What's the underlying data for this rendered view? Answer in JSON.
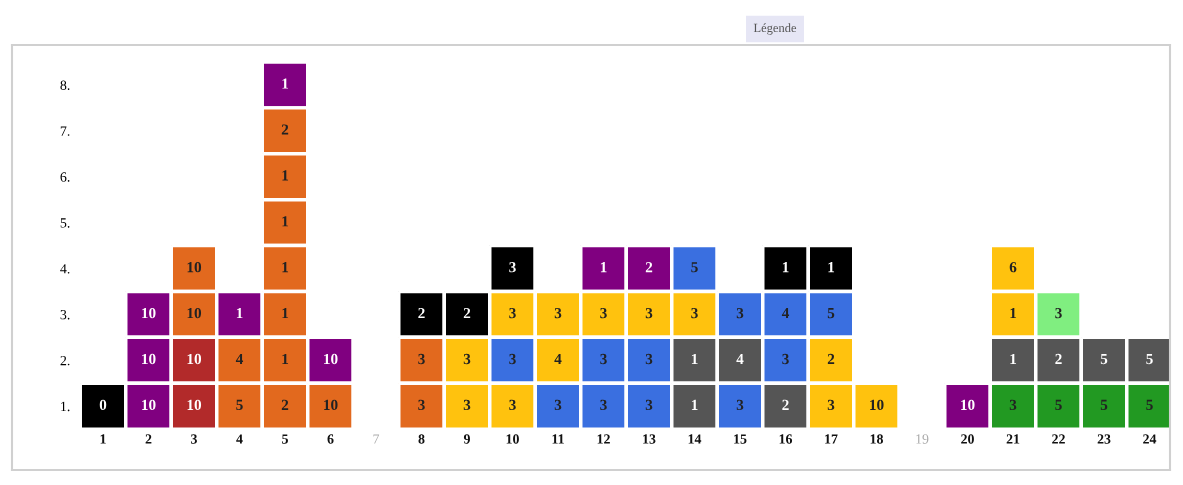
{
  "chart_data": {
    "type": "heatmap",
    "annotations": [
      "Légende"
    ],
    "categories": [
      "1",
      "2",
      "3",
      "4",
      "5",
      "6",
      "7",
      "8",
      "9",
      "10",
      "11",
      "12",
      "13",
      "14",
      "15",
      "16",
      "17",
      "18",
      "19",
      "20",
      "21",
      "22",
      "23",
      "24"
    ],
    "y_categories": [
      "8.",
      "7.",
      "6.",
      "5.",
      "4.",
      "3.",
      "2.",
      "1."
    ],
    "data_labels": true,
    "cells": [
      [
        null,
        null,
        null,
        null,
        1,
        null,
        null,
        null,
        null,
        null,
        null,
        null,
        null,
        null,
        null,
        null,
        null,
        null,
        null,
        null,
        null,
        null,
        null,
        null
      ],
      [
        null,
        null,
        null,
        null,
        2,
        null,
        null,
        null,
        null,
        null,
        null,
        null,
        null,
        null,
        null,
        null,
        null,
        null,
        null,
        null,
        null,
        null,
        null,
        null
      ],
      [
        null,
        null,
        null,
        null,
        1,
        null,
        null,
        null,
        null,
        null,
        null,
        null,
        null,
        null,
        null,
        null,
        null,
        null,
        null,
        null,
        null,
        null,
        null,
        null
      ],
      [
        null,
        null,
        null,
        null,
        1,
        null,
        null,
        null,
        null,
        null,
        null,
        null,
        null,
        null,
        null,
        null,
        null,
        null,
        null,
        null,
        null,
        null,
        null,
        null
      ],
      [
        null,
        null,
        10,
        null,
        1,
        null,
        null,
        null,
        null,
        3,
        null,
        1,
        2,
        5,
        null,
        1,
        1,
        null,
        null,
        null,
        6,
        null,
        null,
        null
      ],
      [
        null,
        10,
        10,
        1,
        1,
        null,
        null,
        2,
        2,
        3,
        3,
        3,
        3,
        3,
        3,
        4,
        5,
        null,
        null,
        null,
        1,
        3,
        null,
        null
      ],
      [
        null,
        10,
        10,
        4,
        1,
        10,
        null,
        3,
        3,
        3,
        4,
        3,
        3,
        1,
        4,
        3,
        2,
        null,
        null,
        null,
        1,
        2,
        5,
        5
      ],
      [
        0,
        10,
        10,
        5,
        2,
        10,
        null,
        3,
        3,
        3,
        3,
        3,
        3,
        1,
        3,
        2,
        3,
        10,
        null,
        10,
        3,
        5,
        5,
        5
      ]
    ],
    "colors": [
      [
        null,
        null,
        null,
        null,
        "#800080",
        null,
        null,
        null,
        null,
        null,
        null,
        null,
        null,
        null,
        null,
        null,
        null,
        null,
        null,
        null,
        null,
        null,
        null,
        null
      ],
      [
        null,
        null,
        null,
        null,
        "#e2691e",
        null,
        null,
        null,
        null,
        null,
        null,
        null,
        null,
        null,
        null,
        null,
        null,
        null,
        null,
        null,
        null,
        null,
        null,
        null
      ],
      [
        null,
        null,
        null,
        null,
        "#e2691e",
        null,
        null,
        null,
        null,
        null,
        null,
        null,
        null,
        null,
        null,
        null,
        null,
        null,
        null,
        null,
        null,
        null,
        null,
        null
      ],
      [
        null,
        null,
        null,
        null,
        "#e2691e",
        null,
        null,
        null,
        null,
        null,
        null,
        null,
        null,
        null,
        null,
        null,
        null,
        null,
        null,
        null,
        null,
        null,
        null,
        null
      ],
      [
        null,
        null,
        "#e2691e",
        null,
        "#e2691e",
        null,
        null,
        null,
        null,
        "#000000",
        null,
        "#800080",
        "#800080",
        "#3a6fe0",
        null,
        "#000000",
        "#000000",
        null,
        null,
        null,
        "#ffc20e",
        null,
        null,
        null
      ],
      [
        null,
        "#800080",
        "#e2691e",
        "#800080",
        "#e2691e",
        null,
        null,
        "#000000",
        "#000000",
        "#ffc20e",
        "#ffc20e",
        "#ffc20e",
        "#ffc20e",
        "#ffc20e",
        "#3a6fe0",
        "#3a6fe0",
        "#3a6fe0",
        null,
        null,
        null,
        "#ffc20e",
        "#80ee80",
        null,
        null
      ],
      [
        null,
        "#800080",
        "#b22a2a",
        "#e2691e",
        "#e2691e",
        "#800080",
        null,
        "#e2691e",
        "#ffc20e",
        "#3a6fe0",
        "#ffc20e",
        "#3a6fe0",
        "#3a6fe0",
        "#555555",
        "#555555",
        "#3a6fe0",
        "#ffc20e",
        null,
        null,
        null,
        "#555555",
        "#555555",
        "#555555",
        "#555555"
      ],
      [
        "#000000",
        "#800080",
        "#b22a2a",
        "#e2691e",
        "#e2691e",
        "#e2691e",
        null,
        "#e2691e",
        "#ffc20e",
        "#ffc20e",
        "#3a6fe0",
        "#3a6fe0",
        "#3a6fe0",
        "#555555",
        "#3a6fe0",
        "#555555",
        "#ffc20e",
        "#ffc20e",
        null,
        "#800080",
        "#229922",
        "#229922",
        "#229922",
        "#229922"
      ]
    ]
  }
}
